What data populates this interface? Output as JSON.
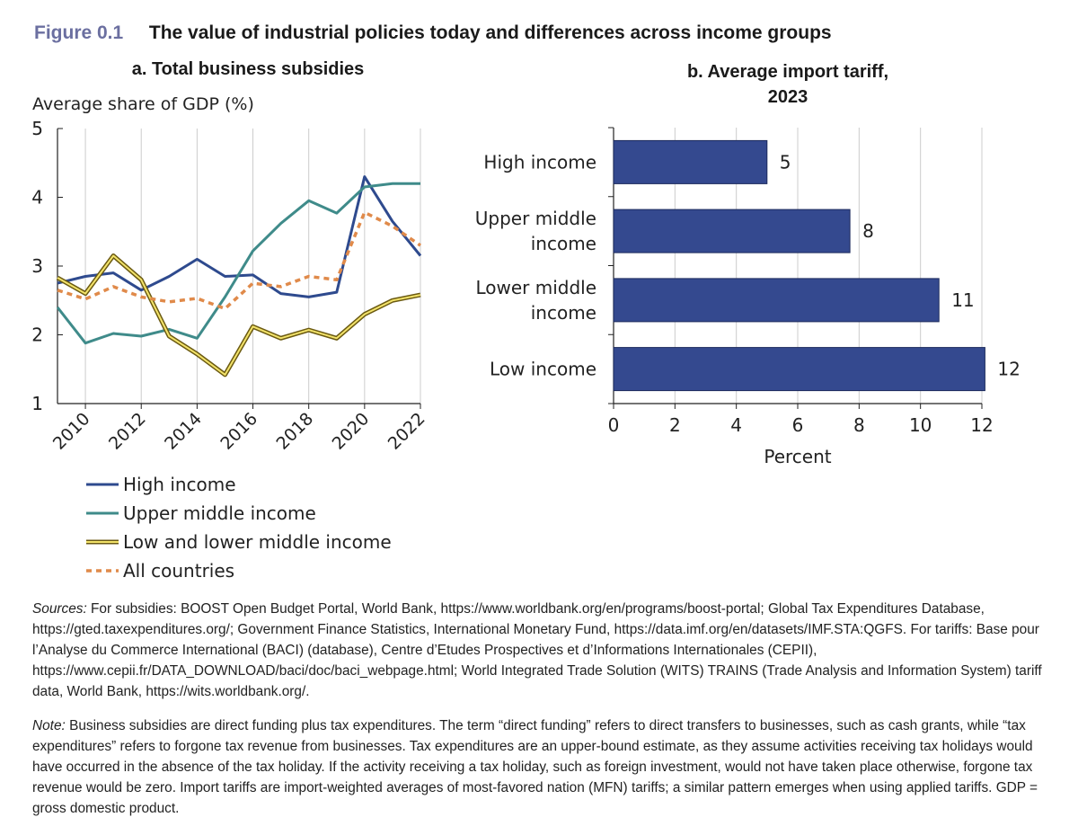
{
  "figure": {
    "label": "Figure 0.1",
    "title": "The value of industrial policies today and differences across income groups"
  },
  "chart_data": [
    {
      "type": "line",
      "title": "a. Total business subsidies",
      "ylabel": "Average share of GDP (%)",
      "xlabel": "",
      "xlim": [
        2009,
        2022
      ],
      "ylim": [
        1,
        5
      ],
      "yticks": [
        1,
        2,
        3,
        4,
        5
      ],
      "xticks": [
        2010,
        2012,
        2014,
        2016,
        2018,
        2020,
        2022
      ],
      "x": [
        2009,
        2010,
        2011,
        2012,
        2013,
        2014,
        2015,
        2016,
        2017,
        2018,
        2019,
        2020,
        2021,
        2022
      ],
      "grid": "vertical",
      "legend": "bottom-left",
      "series": [
        {
          "name": "High income",
          "color": "#2e4a8e",
          "style": "solid",
          "values": [
            2.75,
            2.85,
            2.9,
            2.65,
            2.85,
            3.1,
            2.85,
            2.87,
            2.6,
            2.55,
            2.62,
            4.3,
            3.65,
            3.15
          ]
        },
        {
          "name": "Upper middle income",
          "color": "#3f8b8a",
          "style": "solid",
          "values": [
            2.4,
            1.88,
            2.02,
            1.98,
            2.08,
            1.95,
            2.55,
            3.22,
            3.62,
            3.95,
            3.77,
            4.15,
            4.2,
            4.2
          ]
        },
        {
          "name": "Low and lower middle income",
          "color": "#d9c531",
          "style": "double",
          "values": [
            2.83,
            2.6,
            3.15,
            2.8,
            1.98,
            1.72,
            1.42,
            2.12,
            1.95,
            2.07,
            1.95,
            2.3,
            2.5,
            2.58
          ]
        },
        {
          "name": "All countries",
          "color": "#e08a4a",
          "style": "dotted",
          "values": [
            2.65,
            2.52,
            2.7,
            2.55,
            2.48,
            2.53,
            2.38,
            2.75,
            2.7,
            2.85,
            2.8,
            3.78,
            3.58,
            3.3
          ]
        }
      ]
    },
    {
      "type": "bar",
      "orientation": "horizontal",
      "title": "b. Average import tariff, 2023",
      "title_lines": [
        "b. Average import tariff,",
        "2023"
      ],
      "categories": [
        "High income",
        "Upper middle income",
        "Lower middle income",
        "Low income"
      ],
      "category_lines": [
        [
          "High income"
        ],
        [
          "Upper middle",
          "income"
        ],
        [
          "Lower middle",
          "income"
        ],
        [
          "Low income"
        ]
      ],
      "values": [
        5,
        7.7,
        10.6,
        12.1
      ],
      "value_labels": [
        "5",
        "8",
        "11",
        "12"
      ],
      "xlabel": "Percent",
      "ylabel": "",
      "xlim": [
        0,
        12
      ],
      "xticks": [
        0,
        2,
        4,
        6,
        8,
        10,
        12
      ],
      "grid": "vertical",
      "bar_color": "#34498f"
    }
  ],
  "sources": {
    "label": "Sources:",
    "text": " For subsidies: BOOST Open Budget Portal, World Bank, https://www.worldbank.org/en/programs/boost-portal; Global Tax Expenditures Database, https://gted.taxexpenditures.org/; Government Finance Statistics, International Monetary Fund, https://data.imf.org/en/datasets/IMF.STA:QGFS. For tariffs: Base pour l’Analyse du Commerce International (BACI) (database), Centre d’Etudes Prospectives et d’Informations Internationales (CEPII), https://www.cepii.fr/DATA_DOWNLOAD/baci/doc/baci_webpage.html; World Integrated Trade Solution (WITS) TRAINS (Trade Analysis and Information System) tariff data, World Bank, https://wits.worldbank.org/."
  },
  "note": {
    "label": "Note:",
    "text": " Business subsidies are direct funding plus tax expenditures. The term “direct funding” refers to direct transfers to businesses, such as cash grants, while “tax expenditures” refers to forgone tax revenue from businesses. Tax expenditures are an upper-bound estimate, as they assume activities receiving tax holidays would have occurred in the absence of the tax holiday. If the activity receiving a tax holiday, such as foreign investment, would not have taken place otherwise, forgone tax revenue would be zero. Import tariffs are import-weighted averages of most-favored nation (MFN) tariffs; a similar pattern emerges when using applied tariffs. GDP = gross domestic product."
  }
}
